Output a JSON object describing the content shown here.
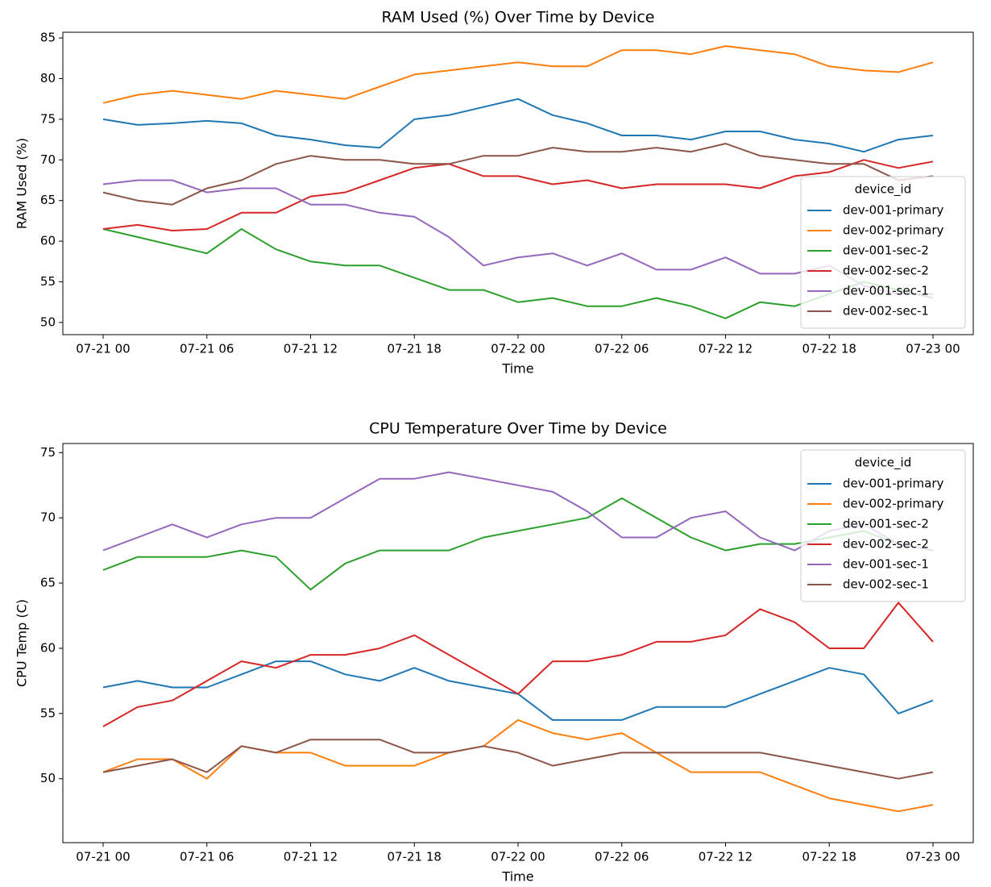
{
  "chart_data": [
    {
      "type": "line",
      "title": "RAM Used (%) Over Time by Device",
      "xlabel": "Time",
      "ylabel": "RAM Used (%)",
      "x": [
        "07-21 00",
        "07-21 02",
        "07-21 04",
        "07-21 06",
        "07-21 08",
        "07-21 10",
        "07-21 12",
        "07-21 14",
        "07-21 16",
        "07-21 18",
        "07-21 20",
        "07-21 22",
        "07-22 00",
        "07-22 02",
        "07-22 04",
        "07-22 06",
        "07-22 08",
        "07-22 10",
        "07-22 12",
        "07-22 14",
        "07-22 16",
        "07-22 18",
        "07-22 20",
        "07-22 22",
        "07-23 00"
      ],
      "xticks": [
        "07-21 00",
        "07-21 06",
        "07-21 12",
        "07-21 18",
        "07-22 00",
        "07-22 06",
        "07-22 12",
        "07-22 18",
        "07-23 00"
      ],
      "ylim": [
        48.5,
        85.7
      ],
      "yticks": [
        50,
        55,
        60,
        65,
        70,
        75,
        80,
        85
      ],
      "legend_title": "device_id",
      "legend": "lower right",
      "series": [
        {
          "name": "dev-001-primary",
          "color": "#1f77b4",
          "values": [
            75,
            74.3,
            74.5,
            74.8,
            74.5,
            73,
            72.5,
            71.8,
            71.5,
            75,
            75.5,
            76.5,
            77.5,
            75.5,
            74.5,
            73,
            73,
            72.5,
            73.5,
            73.5,
            72.5,
            72,
            71,
            72.5,
            73
          ]
        },
        {
          "name": "dev-002-primary",
          "color": "#ff7f0e",
          "values": [
            77,
            78,
            78.5,
            78,
            77.5,
            78.5,
            78,
            77.5,
            79,
            80.5,
            81,
            81.5,
            82,
            81.5,
            81.5,
            83.5,
            83.5,
            83,
            84,
            83.5,
            83,
            81.5,
            81,
            80.8,
            82
          ]
        },
        {
          "name": "dev-001-sec-2",
          "color": "#2ca02c",
          "values": [
            61.5,
            60.5,
            59.5,
            58.5,
            61.5,
            59,
            57.5,
            57,
            57,
            55.5,
            54,
            54,
            52.5,
            53,
            52,
            52,
            53,
            52,
            50.5,
            52.5,
            52,
            53.5,
            55,
            54,
            53
          ]
        },
        {
          "name": "dev-002-sec-2",
          "color": "#d62728",
          "values": [
            61.5,
            62,
            61.3,
            61.5,
            63.5,
            63.5,
            65.5,
            66,
            67.5,
            69,
            69.5,
            68,
            68,
            67,
            67.5,
            66.5,
            67,
            67,
            67,
            66.5,
            68,
            68.5,
            70,
            69,
            69.8
          ]
        },
        {
          "name": "dev-001-sec-1",
          "color": "#9467bd",
          "values": [
            67,
            67.5,
            67.5,
            66,
            66.5,
            66.5,
            64.5,
            64.5,
            63.5,
            63,
            60.5,
            57,
            58,
            58.5,
            57,
            58.5,
            56.5,
            56.5,
            58,
            56,
            56,
            57,
            54.5,
            53.5,
            53.5
          ]
        },
        {
          "name": "dev-002-sec-1",
          "color": "#8c564b",
          "values": [
            66,
            65,
            64.5,
            66.5,
            67.5,
            69.5,
            70.5,
            70,
            70,
            69.5,
            69.5,
            70.5,
            70.5,
            71.5,
            71,
            71,
            71.5,
            71,
            72,
            70.5,
            70,
            69.5,
            69.5,
            67.5,
            68
          ]
        }
      ]
    },
    {
      "type": "line",
      "title": "CPU Temperature Over Time by Device",
      "xlabel": "Time",
      "ylabel": "CPU Temp (C)",
      "x": [
        "07-21 00",
        "07-21 02",
        "07-21 04",
        "07-21 06",
        "07-21 08",
        "07-21 10",
        "07-21 12",
        "07-21 14",
        "07-21 16",
        "07-21 18",
        "07-21 20",
        "07-21 22",
        "07-22 00",
        "07-22 02",
        "07-22 04",
        "07-22 06",
        "07-22 08",
        "07-22 10",
        "07-22 12",
        "07-22 14",
        "07-22 16",
        "07-22 18",
        "07-22 20",
        "07-22 22",
        "07-23 00"
      ],
      "xticks": [
        "07-21 00",
        "07-21 06",
        "07-21 12",
        "07-21 18",
        "07-22 00",
        "07-22 06",
        "07-22 12",
        "07-22 18",
        "07-23 00"
      ],
      "ylim": [
        45.1,
        75.7
      ],
      "yticks": [
        50,
        55,
        60,
        65,
        70,
        75
      ],
      "legend_title": "device_id",
      "legend": "upper right",
      "series": [
        {
          "name": "dev-001-primary",
          "color": "#1f77b4",
          "values": [
            57,
            57.5,
            57,
            57,
            58,
            59,
            59,
            58,
            57.5,
            58.5,
            57.5,
            57,
            56.5,
            54.5,
            54.5,
            54.5,
            55.5,
            55.5,
            55.5,
            56.5,
            57.5,
            58.5,
            58,
            55,
            56
          ]
        },
        {
          "name": "dev-002-primary",
          "color": "#ff7f0e",
          "values": [
            50.5,
            51.5,
            51.5,
            50,
            52.5,
            52,
            52,
            51,
            51,
            51,
            52,
            52.5,
            54.5,
            53.5,
            53,
            53.5,
            52,
            50.5,
            50.5,
            50.5,
            49.5,
            48.5,
            48,
            47.5,
            48
          ]
        },
        {
          "name": "dev-001-sec-2",
          "color": "#2ca02c",
          "values": [
            66,
            67,
            67,
            67,
            67.5,
            67,
            64.5,
            66.5,
            67.5,
            67.5,
            67.5,
            68.5,
            69,
            69.5,
            70,
            71.5,
            70,
            68.5,
            67.5,
            68,
            68,
            68.5,
            69,
            68,
            67.5
          ]
        },
        {
          "name": "dev-002-sec-2",
          "color": "#d62728",
          "values": [
            54,
            55.5,
            56,
            57.5,
            59,
            58.5,
            59.5,
            59.5,
            60,
            61,
            59.5,
            58,
            56.5,
            59,
            59,
            59.5,
            60.5,
            60.5,
            61,
            63,
            62,
            60,
            60,
            63.5,
            60.5
          ]
        },
        {
          "name": "dev-001-sec-1",
          "color": "#9467bd",
          "values": [
            67.5,
            68.5,
            69.5,
            68.5,
            69.5,
            70,
            70,
            71.5,
            73,
            73,
            73.5,
            73,
            72.5,
            72,
            70.5,
            68.5,
            68.5,
            70,
            70.5,
            68.5,
            67.5,
            69,
            69.5,
            68,
            67.5
          ]
        },
        {
          "name": "dev-002-sec-1",
          "color": "#8c564b",
          "values": [
            50.5,
            51,
            51.5,
            50.5,
            52.5,
            52,
            53,
            53,
            53,
            52,
            52,
            52.5,
            52,
            51,
            51.5,
            52,
            52,
            52,
            52,
            52,
            51.5,
            51,
            50.5,
            50,
            50.5
          ]
        }
      ]
    }
  ]
}
